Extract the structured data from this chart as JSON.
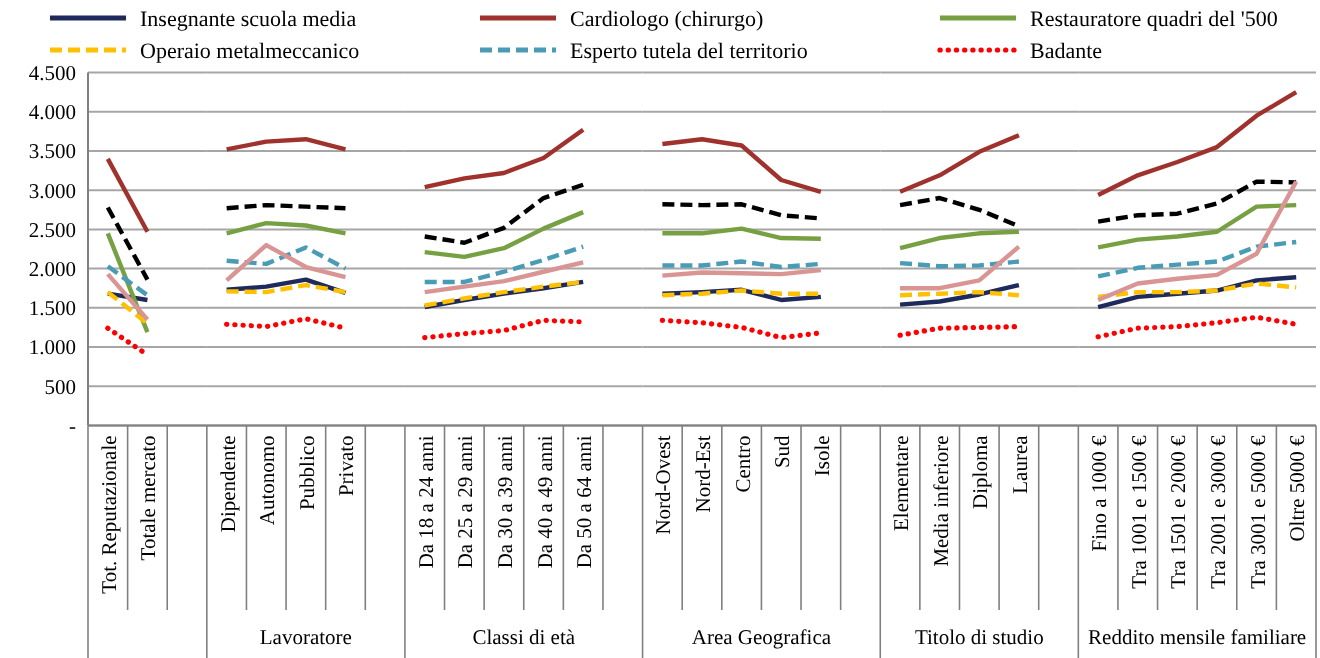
{
  "chart_data": [
    {
      "type": "line",
      "categories": [
        "Tot. Reputazionale",
        "Totale mercato",
        null
      ],
      "ylim": [
        0,
        4500
      ],
      "yticks": [
        {
          "value": 0,
          "label": "-"
        },
        500,
        {
          "value": 1000,
          "label": "1.000"
        },
        {
          "value": 1500,
          "label": "1.500"
        },
        {
          "value": 2000,
          "label": "2.000"
        },
        {
          "value": 2500,
          "label": "2.500"
        },
        {
          "value": 3000,
          "label": "3.000"
        },
        {
          "value": 3500,
          "label": "3.500"
        },
        {
          "value": 4000,
          "label": "4.000"
        },
        {
          "value": 4500,
          "label": "4.500"
        }
      ],
      "grid": "y",
      "legend": "top",
      "series": [
        {
          "name": "Insegnante scuola media",
          "color": "#1f2a5c",
          "line_style": "solid",
          "values": [
            1680,
            1600,
            null
          ]
        },
        {
          "name": "Cardiologo (chirurgo)",
          "color": "#a0322e",
          "line_style": "solid",
          "values": [
            3400,
            2470,
            null
          ]
        },
        {
          "name": "Restauratore quadri del '500",
          "color": "#77a043",
          "line_style": "solid",
          "values": [
            2450,
            1190,
            null
          ]
        },
        {
          "name": "Operaio metalmeccanico",
          "color": "#ffc000",
          "line_style": "dashed",
          "values": [
            1700,
            1300,
            null
          ]
        },
        {
          "name": "Esperto tutela del territorio",
          "color": "#4a9bb5",
          "line_style": "dashed",
          "values": [
            2030,
            1660,
            null
          ]
        },
        {
          "name": "Badante",
          "color": "#ff0000",
          "line_style": "dotted",
          "values": [
            1240,
            900,
            null
          ]
        },
        {
          "color": "#000000",
          "line_style": "dashed",
          "values": [
            2780,
            1860,
            null
          ]
        },
        {
          "color": "#d99594",
          "line_style": "solid",
          "values": [
            1930,
            1350,
            null
          ]
        }
      ]
    },
    {
      "type": "line",
      "xlabel": "Lavoratore",
      "categories": [
        "Dipendente",
        "Autonomo",
        "Pubblico",
        "Privato",
        null
      ],
      "ylim": [
        0,
        4500
      ],
      "tick_labels": "x",
      "grid": "y",
      "series": [
        {
          "color": "#1f2a5c",
          "line_style": "solid",
          "values": [
            1730,
            1770,
            1860,
            1690,
            null
          ]
        },
        {
          "color": "#a0322e",
          "line_style": "solid",
          "values": [
            3520,
            3620,
            3650,
            3520,
            null
          ]
        },
        {
          "color": "#77a043",
          "line_style": "solid",
          "values": [
            2450,
            2580,
            2550,
            2450,
            null
          ]
        },
        {
          "color": "#ffc000",
          "line_style": "dashed",
          "values": [
            1710,
            1700,
            1790,
            1700,
            null
          ]
        },
        {
          "color": "#4a9bb5",
          "line_style": "dashed",
          "values": [
            2100,
            2060,
            2270,
            2000,
            null
          ]
        },
        {
          "color": "#ff0000",
          "line_style": "dotted",
          "values": [
            1290,
            1260,
            1360,
            1240,
            null
          ]
        },
        {
          "color": "#000000",
          "line_style": "dashed",
          "values": [
            2770,
            2810,
            2790,
            2770,
            null
          ]
        },
        {
          "color": "#d99594",
          "line_style": "solid",
          "values": [
            1850,
            2300,
            2020,
            1890,
            null
          ]
        }
      ]
    },
    {
      "type": "line",
      "xlabel": "Classi di età",
      "categories": [
        "Da 18 a 24 anni",
        "Da 25 a 29 anni",
        "Da 30 a 39 anni",
        "Da 40 a 49 anni",
        "Da 50 a 64 anni",
        null
      ],
      "ylim": [
        0,
        4500
      ],
      "tick_labels": "x",
      "grid": "y",
      "series": [
        {
          "color": "#1f2a5c",
          "line_style": "solid",
          "values": [
            1510,
            1600,
            1680,
            1750,
            1830,
            null
          ]
        },
        {
          "color": "#a0322e",
          "line_style": "solid",
          "values": [
            3040,
            3150,
            3220,
            3410,
            3770,
            null
          ]
        },
        {
          "color": "#77a043",
          "line_style": "solid",
          "values": [
            2210,
            2150,
            2260,
            2510,
            2720,
            null
          ]
        },
        {
          "color": "#ffc000",
          "line_style": "dashed",
          "values": [
            1530,
            1620,
            1700,
            1770,
            1830,
            null
          ]
        },
        {
          "color": "#4a9bb5",
          "line_style": "dashed",
          "values": [
            1830,
            1830,
            1960,
            2110,
            2280,
            null
          ]
        },
        {
          "color": "#ff0000",
          "line_style": "dotted",
          "values": [
            1120,
            1170,
            1210,
            1340,
            1320,
            null
          ]
        },
        {
          "color": "#000000",
          "line_style": "dashed",
          "values": [
            2410,
            2330,
            2520,
            2900,
            3070,
            null
          ]
        },
        {
          "color": "#d99594",
          "line_style": "solid",
          "values": [
            1700,
            1770,
            1840,
            1960,
            2080,
            null
          ]
        }
      ]
    },
    {
      "type": "line",
      "xlabel": "Area Geografica",
      "categories": [
        "Nord-Ovest",
        "Nord-Est",
        "Centro",
        "Sud",
        "Isole",
        null
      ],
      "ylim": [
        0,
        4500
      ],
      "tick_labels": "x",
      "grid": "y",
      "series": [
        {
          "color": "#1f2a5c",
          "line_style": "solid",
          "values": [
            1680,
            1700,
            1730,
            1600,
            1640,
            null
          ]
        },
        {
          "color": "#a0322e",
          "line_style": "solid",
          "values": [
            3590,
            3650,
            3570,
            3130,
            2980,
            null
          ]
        },
        {
          "color": "#77a043",
          "line_style": "solid",
          "values": [
            2450,
            2450,
            2510,
            2390,
            2380,
            null
          ]
        },
        {
          "color": "#ffc000",
          "line_style": "dashed",
          "values": [
            1660,
            1680,
            1720,
            1680,
            1680,
            null
          ]
        },
        {
          "color": "#4a9bb5",
          "line_style": "dashed",
          "values": [
            2040,
            2040,
            2090,
            2020,
            2060,
            null
          ]
        },
        {
          "color": "#ff0000",
          "line_style": "dotted",
          "values": [
            1340,
            1310,
            1250,
            1120,
            1180,
            null
          ]
        },
        {
          "color": "#000000",
          "line_style": "dashed",
          "values": [
            2820,
            2810,
            2820,
            2680,
            2640,
            null
          ]
        },
        {
          "color": "#d99594",
          "line_style": "solid",
          "values": [
            1910,
            1950,
            1940,
            1930,
            1980,
            null
          ]
        }
      ]
    },
    {
      "type": "line",
      "xlabel": "Titolo di studio",
      "categories": [
        "Elementare",
        "Media inferiore",
        "Diploma",
        "Laurea",
        null
      ],
      "ylim": [
        0,
        4500
      ],
      "tick_labels": "x",
      "grid": "y",
      "series": [
        {
          "color": "#1f2a5c",
          "line_style": "solid",
          "values": [
            1540,
            1580,
            1670,
            1790,
            null
          ]
        },
        {
          "color": "#a0322e",
          "line_style": "solid",
          "values": [
            2980,
            3190,
            3490,
            3700,
            null
          ]
        },
        {
          "color": "#77a043",
          "line_style": "solid",
          "values": [
            2260,
            2390,
            2450,
            2470,
            null
          ]
        },
        {
          "color": "#ffc000",
          "line_style": "dashed",
          "values": [
            1660,
            1680,
            1700,
            1660,
            null
          ]
        },
        {
          "color": "#4a9bb5",
          "line_style": "dashed",
          "values": [
            2070,
            2030,
            2040,
            2090,
            null
          ]
        },
        {
          "color": "#ff0000",
          "line_style": "dotted",
          "values": [
            1150,
            1240,
            1250,
            1260,
            null
          ]
        },
        {
          "color": "#000000",
          "line_style": "dashed",
          "values": [
            2810,
            2900,
            2750,
            2540,
            null
          ]
        },
        {
          "color": "#d99594",
          "line_style": "solid",
          "values": [
            1750,
            1750,
            1850,
            2280,
            null
          ]
        }
      ]
    },
    {
      "type": "line",
      "xlabel": "Reddito mensile familiare",
      "categories": [
        "Fino a 1000 €",
        "Tra 1001 e 1500 €",
        "Tra 1501 e 2000 €",
        "Tra 2001 e 3000 €",
        "Tra 3001 e 5000 €",
        "Oltre 5000 €"
      ],
      "ylim": [
        0,
        4500
      ],
      "tick_labels": "x",
      "grid": "y",
      "series": [
        {
          "color": "#1f2a5c",
          "line_style": "solid",
          "values": [
            1510,
            1640,
            1680,
            1720,
            1850,
            1890
          ]
        },
        {
          "color": "#a0322e",
          "line_style": "solid",
          "values": [
            2940,
            3190,
            3360,
            3550,
            3950,
            4250
          ]
        },
        {
          "color": "#77a043",
          "line_style": "solid",
          "values": [
            2270,
            2370,
            2410,
            2470,
            2790,
            2810
          ]
        },
        {
          "color": "#ffc000",
          "line_style": "dashed",
          "values": [
            1640,
            1700,
            1700,
            1720,
            1810,
            1760
          ]
        },
        {
          "color": "#4a9bb5",
          "line_style": "dashed",
          "values": [
            1900,
            2010,
            2050,
            2090,
            2280,
            2340
          ]
        },
        {
          "color": "#ff0000",
          "line_style": "dotted",
          "values": [
            1130,
            1240,
            1260,
            1310,
            1380,
            1290
          ]
        },
        {
          "color": "#000000",
          "line_style": "dashed",
          "values": [
            2600,
            2680,
            2700,
            2830,
            3110,
            3100
          ]
        },
        {
          "color": "#d99594",
          "line_style": "solid",
          "values": [
            1600,
            1810,
            1870,
            1920,
            2190,
            3110
          ]
        }
      ]
    }
  ]
}
